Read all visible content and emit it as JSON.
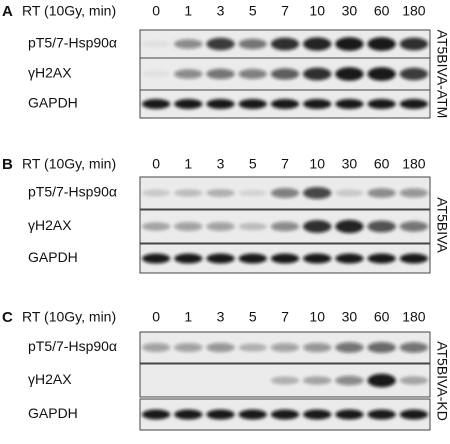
{
  "panels": [
    {
      "label": "A",
      "treatment": "RT (10Gy, min)",
      "timepoints": [
        "0",
        "1",
        "3",
        "5",
        "7",
        "10",
        "30",
        "60",
        "180"
      ],
      "rows": [
        "pT5/7-Hsp90α",
        "γH2AX",
        "GAPDH"
      ],
      "cell_line": "AT5BIVA-ATM"
    },
    {
      "label": "B",
      "treatment": "RT (10Gy, min)",
      "timepoints": [
        "0",
        "1",
        "3",
        "5",
        "7",
        "10",
        "30",
        "60",
        "180"
      ],
      "rows": [
        "pT5/7-Hsp90α",
        "γH2AX",
        "GAPDH"
      ],
      "cell_line": "AT5BIVA"
    },
    {
      "label": "C",
      "treatment": "RT (10Gy, min)",
      "timepoints": [
        "0",
        "1",
        "3",
        "5",
        "7",
        "10",
        "30",
        "60",
        "180"
      ],
      "rows": [
        "pT5/7-Hsp90α",
        "γH2AX",
        "GAPDH"
      ],
      "cell_line": "AT5BIVA-KD"
    }
  ]
}
